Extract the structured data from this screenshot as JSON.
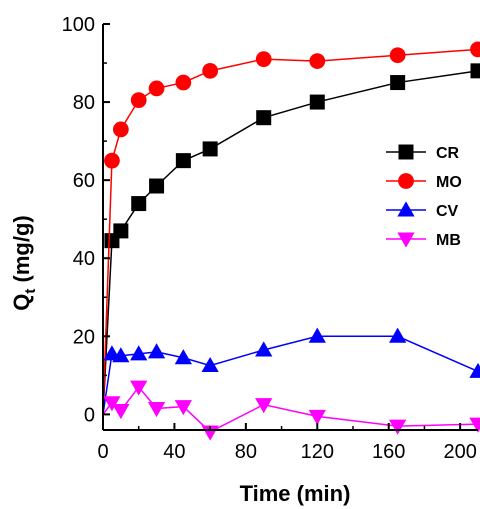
{
  "chart_data": {
    "type": "line",
    "xlabel": "Time (min)",
    "ylabel_main": "Q",
    "ylabel_sub": "t",
    "ylabel_unit": " (mg/g)",
    "xlim": [
      0,
      210
    ],
    "ylim": [
      -4,
      100
    ],
    "x_ticks": [
      0,
      40,
      80,
      120,
      160,
      200
    ],
    "x_tick_labels": [
      "0",
      "40",
      "80",
      "120",
      "160",
      "200"
    ],
    "y_ticks": [
      0,
      20,
      40,
      60,
      80,
      100
    ],
    "y_tick_labels": [
      "0",
      "20",
      "40",
      "60",
      "80",
      "100"
    ],
    "grid": false,
    "legend_position": "right",
    "series": [
      {
        "name": "CR",
        "color": "#000000",
        "marker": "square",
        "x": [
          0,
          5,
          10,
          20,
          30,
          45,
          60,
          90,
          120,
          165,
          210
        ],
        "y": [
          0,
          44.5,
          47,
          54,
          58.5,
          65,
          68,
          76,
          80,
          85,
          88
        ]
      },
      {
        "name": "MO",
        "color": "#ff0000",
        "marker": "circle",
        "x": [
          0,
          5,
          10,
          20,
          30,
          45,
          60,
          90,
          120,
          165,
          210
        ],
        "y": [
          0,
          65,
          73,
          80.5,
          83.5,
          85,
          88,
          91,
          90.5,
          92,
          93.5
        ]
      },
      {
        "name": "CV",
        "color": "#0000ff",
        "marker": "triangle-up",
        "x": [
          0,
          5,
          10,
          20,
          30,
          45,
          60,
          90,
          120,
          165,
          210
        ],
        "y": [
          0,
          15.5,
          15,
          15.5,
          16,
          14.5,
          12.5,
          16.5,
          20,
          20,
          11
        ]
      },
      {
        "name": "MB",
        "color": "#ff00ff",
        "marker": "triangle-down",
        "x": [
          0,
          5,
          10,
          20,
          30,
          45,
          60,
          90,
          120,
          165,
          210
        ],
        "y": [
          0,
          3,
          1,
          7,
          1.5,
          2,
          -4.5,
          2.5,
          -0.5,
          -3,
          -2.5
        ]
      }
    ]
  }
}
